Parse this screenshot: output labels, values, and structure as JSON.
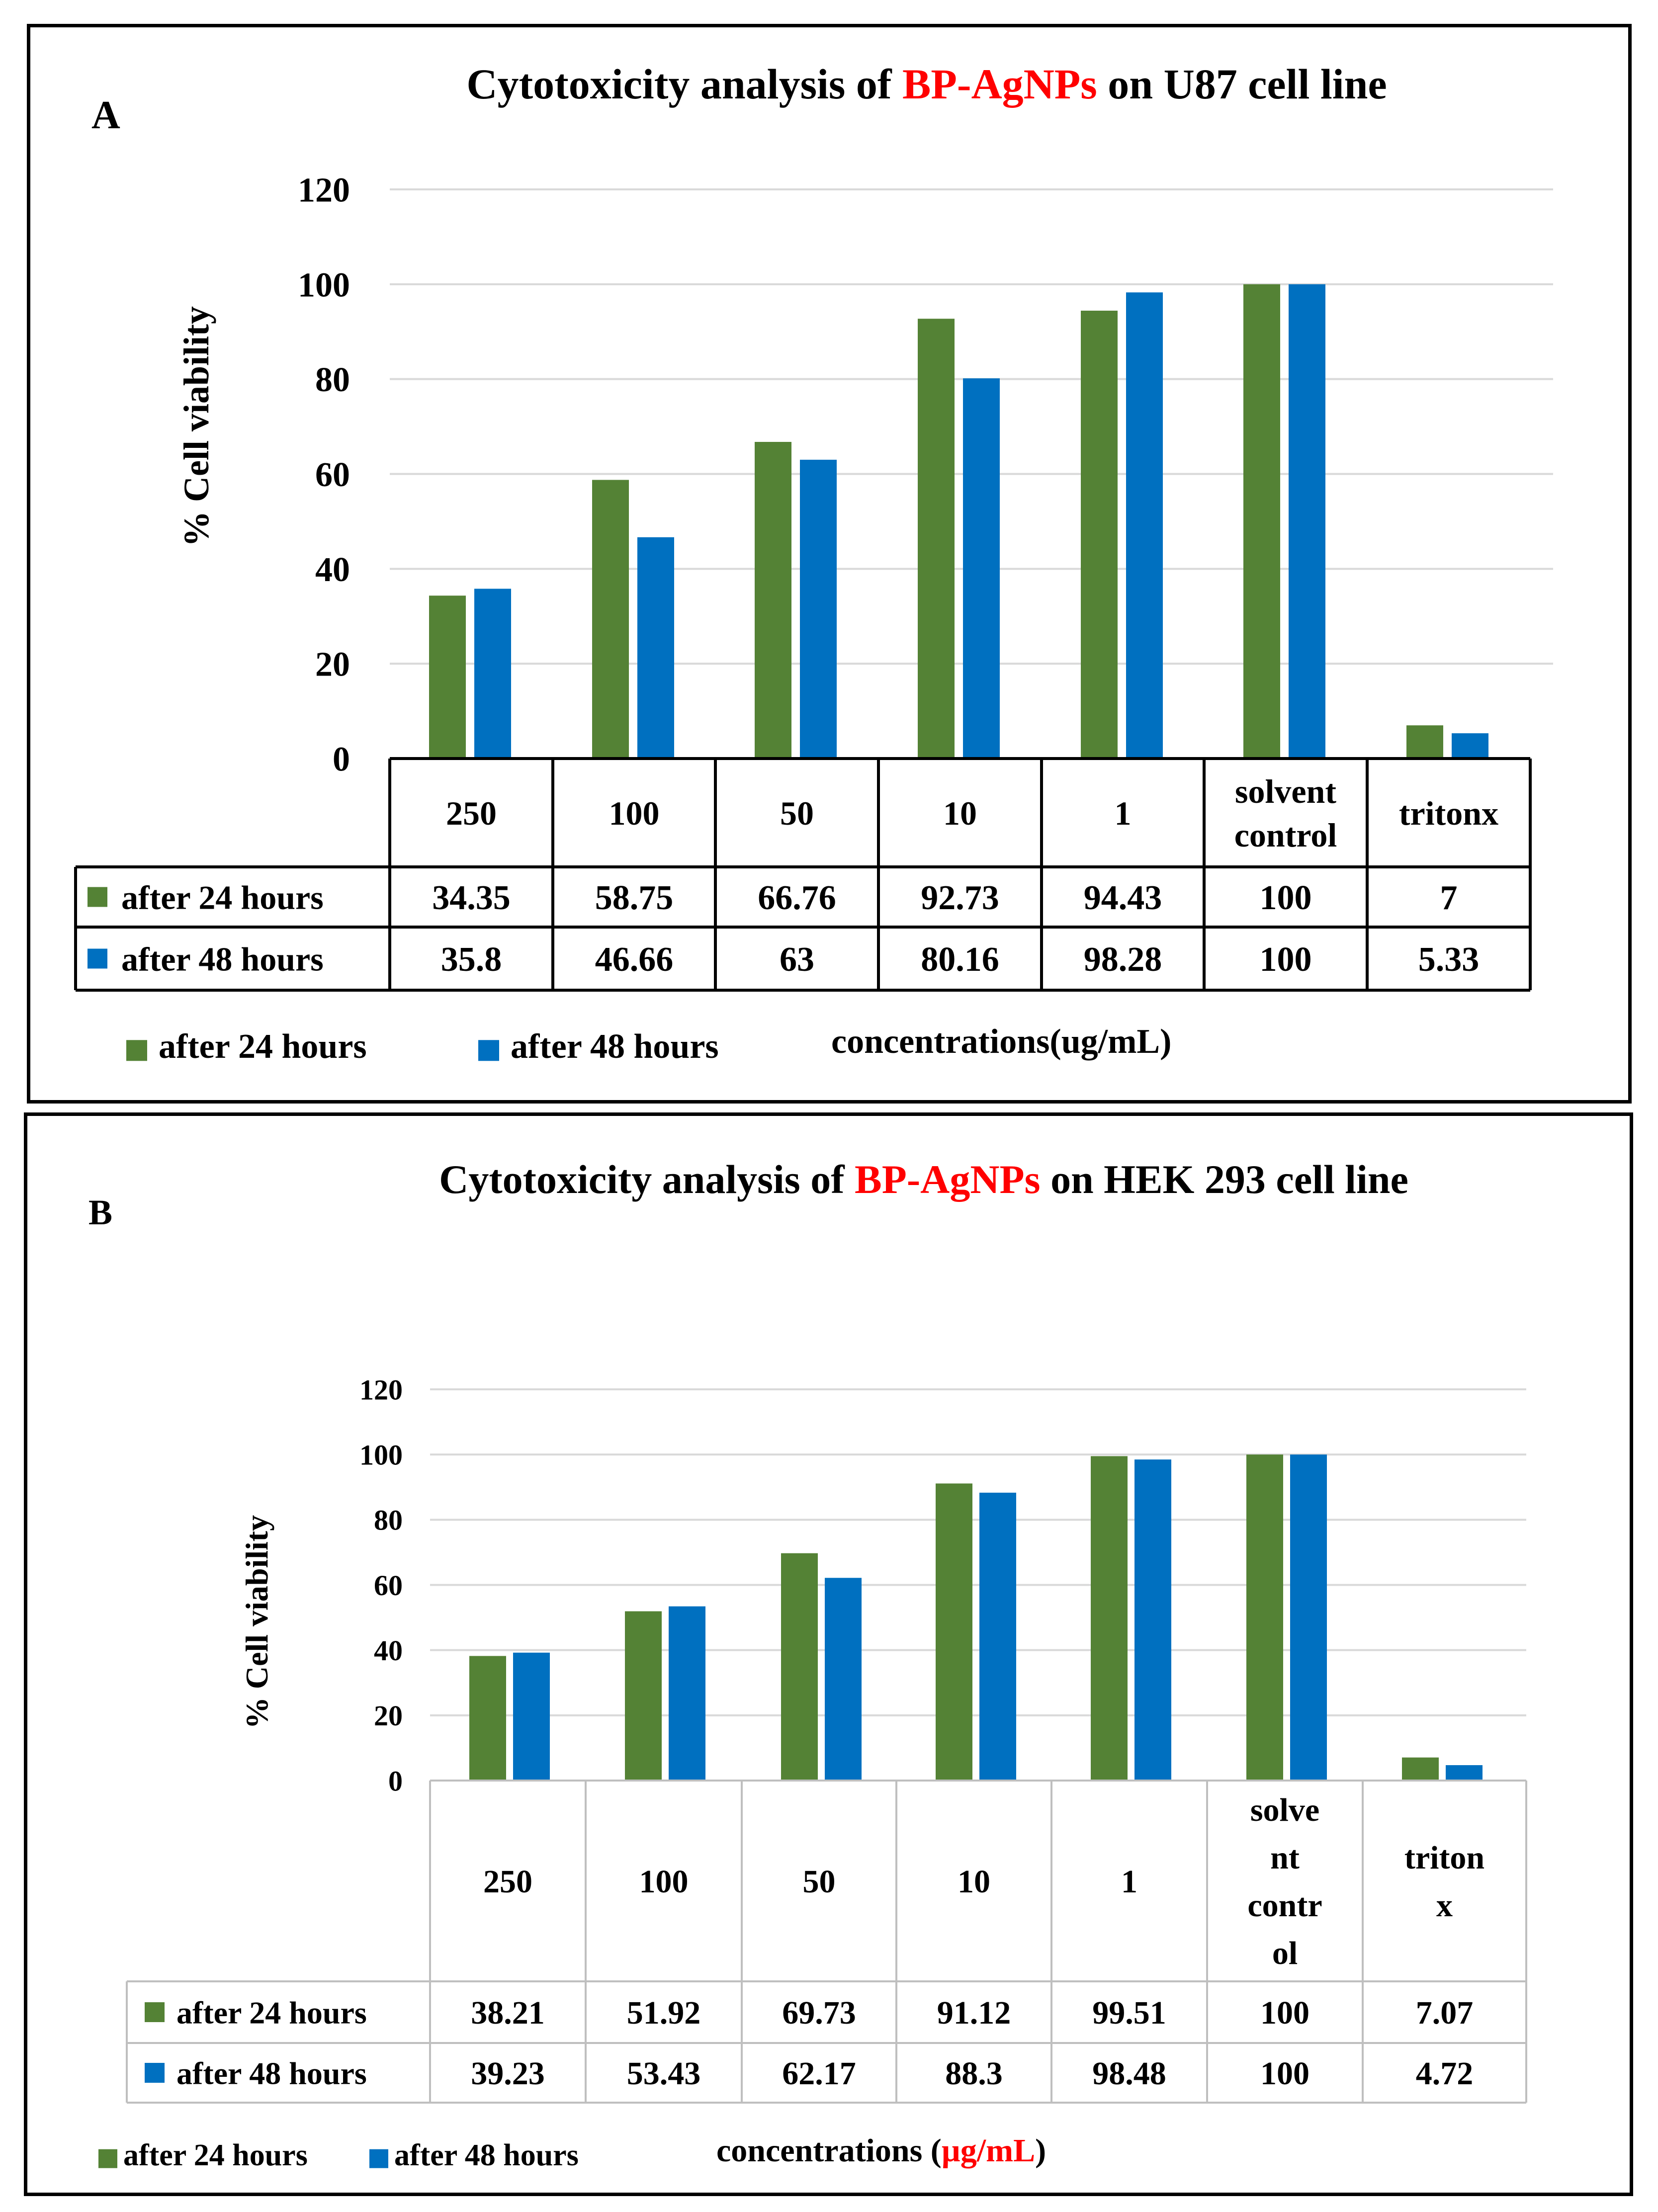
{
  "colors": {
    "series24": "#548235",
    "series48": "#0070c0",
    "highlight": "#ff0000",
    "grid": "#d9d9d9",
    "text": "#000000"
  },
  "charts": [
    {
      "panel_label": "A",
      "title_parts": [
        "Cytotoxicity analysis of ",
        "BP-AgNPs",
        " on U87 cell line"
      ],
      "ylabel": "% Cell viability",
      "xlabel_parts": [
        "concentrations(ug/mL)"
      ],
      "categories": [
        [
          "250"
        ],
        [
          "100"
        ],
        [
          "50"
        ],
        [
          "10"
        ],
        [
          "1"
        ],
        [
          "solvent",
          "control"
        ],
        [
          "tritonx"
        ]
      ],
      "yticks": [
        "0",
        "20",
        "40",
        "60",
        "80",
        "100",
        "120"
      ],
      "legend": [
        "after 24 hours",
        "after 48 hours"
      ],
      "table_values": [
        [
          "34.35",
          "58.75",
          "66.76",
          "92.73",
          "94.43",
          "100",
          "7"
        ],
        [
          "35.8",
          "46.66",
          "63",
          "80.16",
          "98.28",
          "100",
          "5.33"
        ]
      ]
    },
    {
      "panel_label": "B",
      "title_parts": [
        "Cytotoxicity  analysis of ",
        "BP-AgNPs",
        " on HEK 293 cell line"
      ],
      "ylabel": "% Cell viability",
      "xlabel_parts": [
        "concentrations (",
        "µg/mL",
        ")"
      ],
      "categories": [
        [
          "250"
        ],
        [
          "100"
        ],
        [
          "50"
        ],
        [
          "10"
        ],
        [
          "1"
        ],
        [
          "solve",
          "nt",
          "contr",
          "ol"
        ],
        [
          "triton",
          "x"
        ]
      ],
      "yticks": [
        "0",
        "20",
        "40",
        "60",
        "80",
        "100",
        "120"
      ],
      "legend": [
        "after 24 hours",
        "after 48 hours"
      ],
      "table_values": [
        [
          "38.21",
          "51.92",
          "69.73",
          "91.12",
          "99.51",
          "100",
          "7.07"
        ],
        [
          "39.23",
          "53.43",
          "62.17",
          "88.3",
          "98.48",
          "100",
          "4.72"
        ]
      ]
    }
  ],
  "chart_data": [
    {
      "type": "bar",
      "title": "Cytotoxicity analysis of BP-AgNPs on U87 cell line",
      "ylabel": "% Cell viability",
      "xlabel": "concentrations(ug/mL)",
      "categories": [
        "250",
        "100",
        "50",
        "10",
        "1",
        "solvent control",
        "tritonx"
      ],
      "ylim": [
        0,
        120
      ],
      "grid": true,
      "legend_position": "bottom-left",
      "series": [
        {
          "name": "after 24 hours",
          "values": [
            34.35,
            58.75,
            66.76,
            92.73,
            94.43,
            100,
            7
          ]
        },
        {
          "name": "after 48 hours",
          "values": [
            35.8,
            46.66,
            63,
            80.16,
            98.28,
            100,
            5.33
          ]
        }
      ]
    },
    {
      "type": "bar",
      "title": "Cytotoxicity analysis of BP-AgNPs on HEK 293 cell line",
      "ylabel": "% Cell viability",
      "xlabel": "concentrations (µg/mL)",
      "categories": [
        "250",
        "100",
        "50",
        "10",
        "1",
        "solvent control",
        "triton x"
      ],
      "ylim": [
        0,
        120
      ],
      "grid": true,
      "legend_position": "bottom-left",
      "series": [
        {
          "name": "after 24 hours",
          "values": [
            38.21,
            51.92,
            69.73,
            91.12,
            99.51,
            100,
            7.07
          ]
        },
        {
          "name": "after 48 hours",
          "values": [
            39.23,
            53.43,
            62.17,
            88.3,
            98.48,
            100,
            4.72
          ]
        }
      ]
    }
  ]
}
